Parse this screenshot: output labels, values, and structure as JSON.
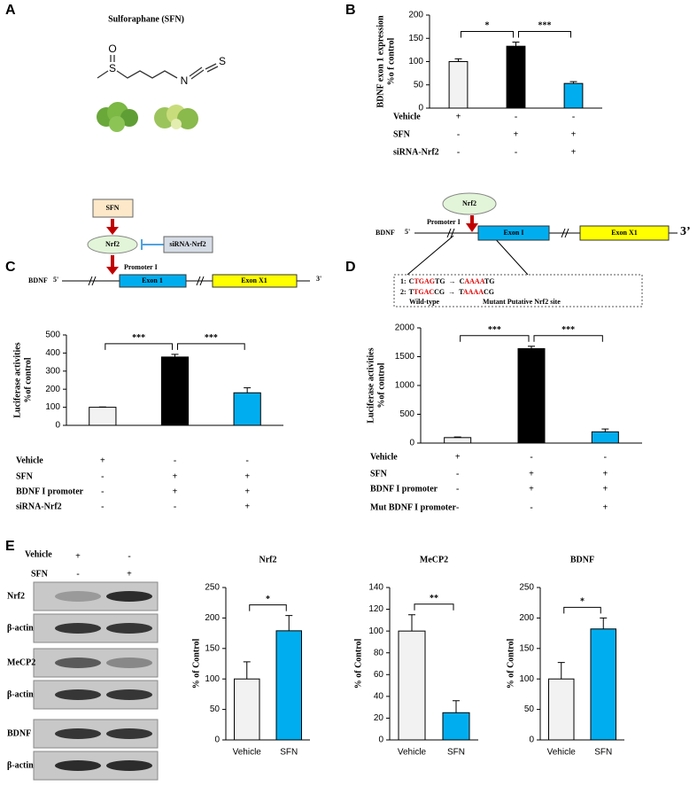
{
  "panel_labels": [
    "A",
    "B",
    "C",
    "D",
    "E"
  ],
  "panel_a": {
    "title": "Sulforaphane (SFN)",
    "atoms": [
      "O",
      "S",
      "N",
      "S"
    ]
  },
  "diagram_c": {
    "sfn": "SFN",
    "nrf2": "Nrf2",
    "sirna": "siRNA-Nrf2",
    "promoter": "Promoter I",
    "gene": "BDNF",
    "five_prime": "5'",
    "exon1": "Exon 1",
    "exonx1": "Exon X1",
    "three_prime": "3'"
  },
  "diagram_d": {
    "nrf2": "Nrf2",
    "promoter": "Promoter I",
    "gene": "BDNF",
    "five_prime": "5'",
    "exon1": "Exon I",
    "exonx1": "Exon X1",
    "three_prime": "3’",
    "mutations": [
      {
        "index": "1:",
        "wild": [
          "C",
          "TGAG",
          "TG"
        ],
        "arrow": "→",
        "mutant": [
          "C",
          "AAAA",
          "TG"
        ]
      },
      {
        "index": "2:",
        "wild": [
          "T",
          "TGAC",
          "CG"
        ],
        "arrow": "→",
        "mutant": [
          "T",
          "AAAA",
          "CG"
        ]
      }
    ],
    "wild_label": "Wild-type",
    "mutant_label": "Mutant Putative Nrf2 site"
  },
  "blot_e": {
    "conditions": [
      {
        "name": "Vehicle",
        "marks": [
          "+",
          "-"
        ]
      },
      {
        "name": "SFN",
        "marks": [
          "-",
          "+"
        ]
      }
    ],
    "rows": [
      "Nrf2",
      "β-actin",
      "MeCP2",
      "β-actin",
      "BDNF",
      "β-actin"
    ]
  },
  "chart_data": [
    {
      "type": "bar",
      "y_label": [
        "BDNF exon 1 expression",
        "%o f control"
      ],
      "ylim": [
        0,
        200
      ],
      "yticks": [
        0,
        50,
        100,
        150,
        200
      ],
      "values": [
        100,
        133,
        53
      ],
      "errors": [
        6,
        9,
        4
      ],
      "colors": [
        "#f2f2f2",
        "#000000",
        "#00aeef"
      ],
      "significance": [
        "*",
        "***"
      ],
      "conditions": [
        {
          "name": "Vehicle",
          "marks": [
            "+",
            "-",
            "-"
          ]
        },
        {
          "name": "SFN",
          "marks": [
            "-",
            "+",
            "+"
          ]
        },
        {
          "name": "siRNA-Nrf2",
          "marks": [
            "-",
            "-",
            "+"
          ]
        }
      ]
    },
    {
      "type": "bar",
      "y_label": [
        "Luciferase  activities",
        "%of control"
      ],
      "ylim": [
        0,
        500
      ],
      "yticks": [
        0,
        100,
        200,
        300,
        400,
        500
      ],
      "values": [
        100,
        378,
        180
      ],
      "errors": [
        2,
        15,
        28
      ],
      "colors": [
        "#f2f2f2",
        "#000000",
        "#00aeef"
      ],
      "significance": [
        "***",
        "***"
      ],
      "conditions": [
        {
          "name": "Vehicle",
          "marks": [
            "+",
            "-",
            "-"
          ]
        },
        {
          "name": "SFN",
          "marks": [
            "-",
            "+",
            "+"
          ]
        },
        {
          "name": "BDNF I promoter",
          "marks": [
            "-",
            "+",
            "+"
          ]
        },
        {
          "name": "siRNA-Nrf2",
          "marks": [
            "-",
            "-",
            "+"
          ]
        }
      ]
    },
    {
      "type": "bar",
      "y_label": [
        "Luciferase  activities",
        "%of control"
      ],
      "ylim": [
        0,
        2000
      ],
      "yticks": [
        0,
        500,
        1000,
        1500,
        2000
      ],
      "values": [
        95,
        1640,
        195
      ],
      "errors": [
        10,
        40,
        50
      ],
      "colors": [
        "#f2f2f2",
        "#000000",
        "#00aeef"
      ],
      "significance": [
        "***",
        "***"
      ],
      "conditions": [
        {
          "name": "Vehicle",
          "marks": [
            "+",
            "-",
            "-"
          ]
        },
        {
          "name": "SFN",
          "marks": [
            "-",
            "+",
            "+"
          ]
        },
        {
          "name": "BDNF I promoter",
          "marks": [
            "-",
            "+",
            "+"
          ]
        },
        {
          "name": "Mut BDNF I promoter",
          "marks": [
            "-",
            "-",
            "+"
          ]
        }
      ]
    },
    {
      "type": "bar",
      "title": "Nrf2",
      "y_label": [
        "% of Control"
      ],
      "ylim": [
        0,
        250
      ],
      "yticks": [
        0,
        50,
        100,
        150,
        200,
        250
      ],
      "categories": [
        "Vehicle",
        "SFN"
      ],
      "values": [
        100,
        179
      ],
      "errors": [
        28,
        25
      ],
      "colors": [
        "#f2f2f2",
        "#00aeef"
      ],
      "significance": [
        "*"
      ]
    },
    {
      "type": "bar",
      "title": "MeCP2",
      "y_label": [
        "% of Control"
      ],
      "ylim": [
        0,
        140
      ],
      "yticks": [
        0,
        20,
        40,
        60,
        80,
        100,
        120,
        140
      ],
      "categories": [
        "Vehicle",
        "SFN"
      ],
      "values": [
        100,
        25
      ],
      "errors": [
        15,
        11
      ],
      "colors": [
        "#f2f2f2",
        "#00aeef"
      ],
      "significance": [
        "**"
      ]
    },
    {
      "type": "bar",
      "title": "BDNF",
      "y_label": [
        "% of Control"
      ],
      "ylim": [
        0,
        250
      ],
      "yticks": [
        0,
        50,
        100,
        150,
        200,
        250
      ],
      "categories": [
        "Vehicle",
        "SFN"
      ],
      "values": [
        100,
        182
      ],
      "errors": [
        27,
        18
      ],
      "colors": [
        "#f2f2f2",
        "#00aeef"
      ],
      "significance": [
        "*"
      ]
    }
  ]
}
